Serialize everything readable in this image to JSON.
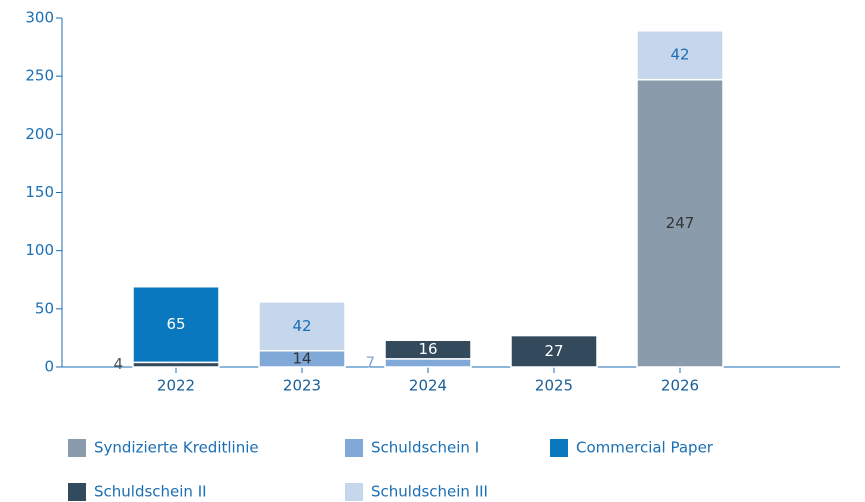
{
  "chart_data": {
    "type": "stacked_bar",
    "categories": [
      "2022",
      "2023",
      "2024",
      "2025",
      "2026"
    ],
    "series": [
      {
        "name": "Syndizierte Kreditlinie",
        "color": "#8a9cab",
        "values": [
          null,
          null,
          null,
          null,
          247
        ]
      },
      {
        "name": "Schuldschein I",
        "color": "#80a9d8",
        "values": [
          null,
          14,
          7,
          null,
          null
        ]
      },
      {
        "name": "Commercial Paper",
        "color": "#0a78be",
        "values": [
          65,
          null,
          null,
          null,
          null
        ]
      },
      {
        "name": "Schuldschein II",
        "color": "#33495c",
        "values": [
          4,
          null,
          16,
          27,
          null
        ]
      },
      {
        "name": "Schuldschein III",
        "color": "#c6d7ed",
        "values": [
          null,
          42,
          null,
          null,
          42
        ]
      }
    ],
    "ylim": [
      0,
      300
    ],
    "yticks": [
      0,
      50,
      100,
      150,
      200,
      250,
      300
    ]
  }
}
